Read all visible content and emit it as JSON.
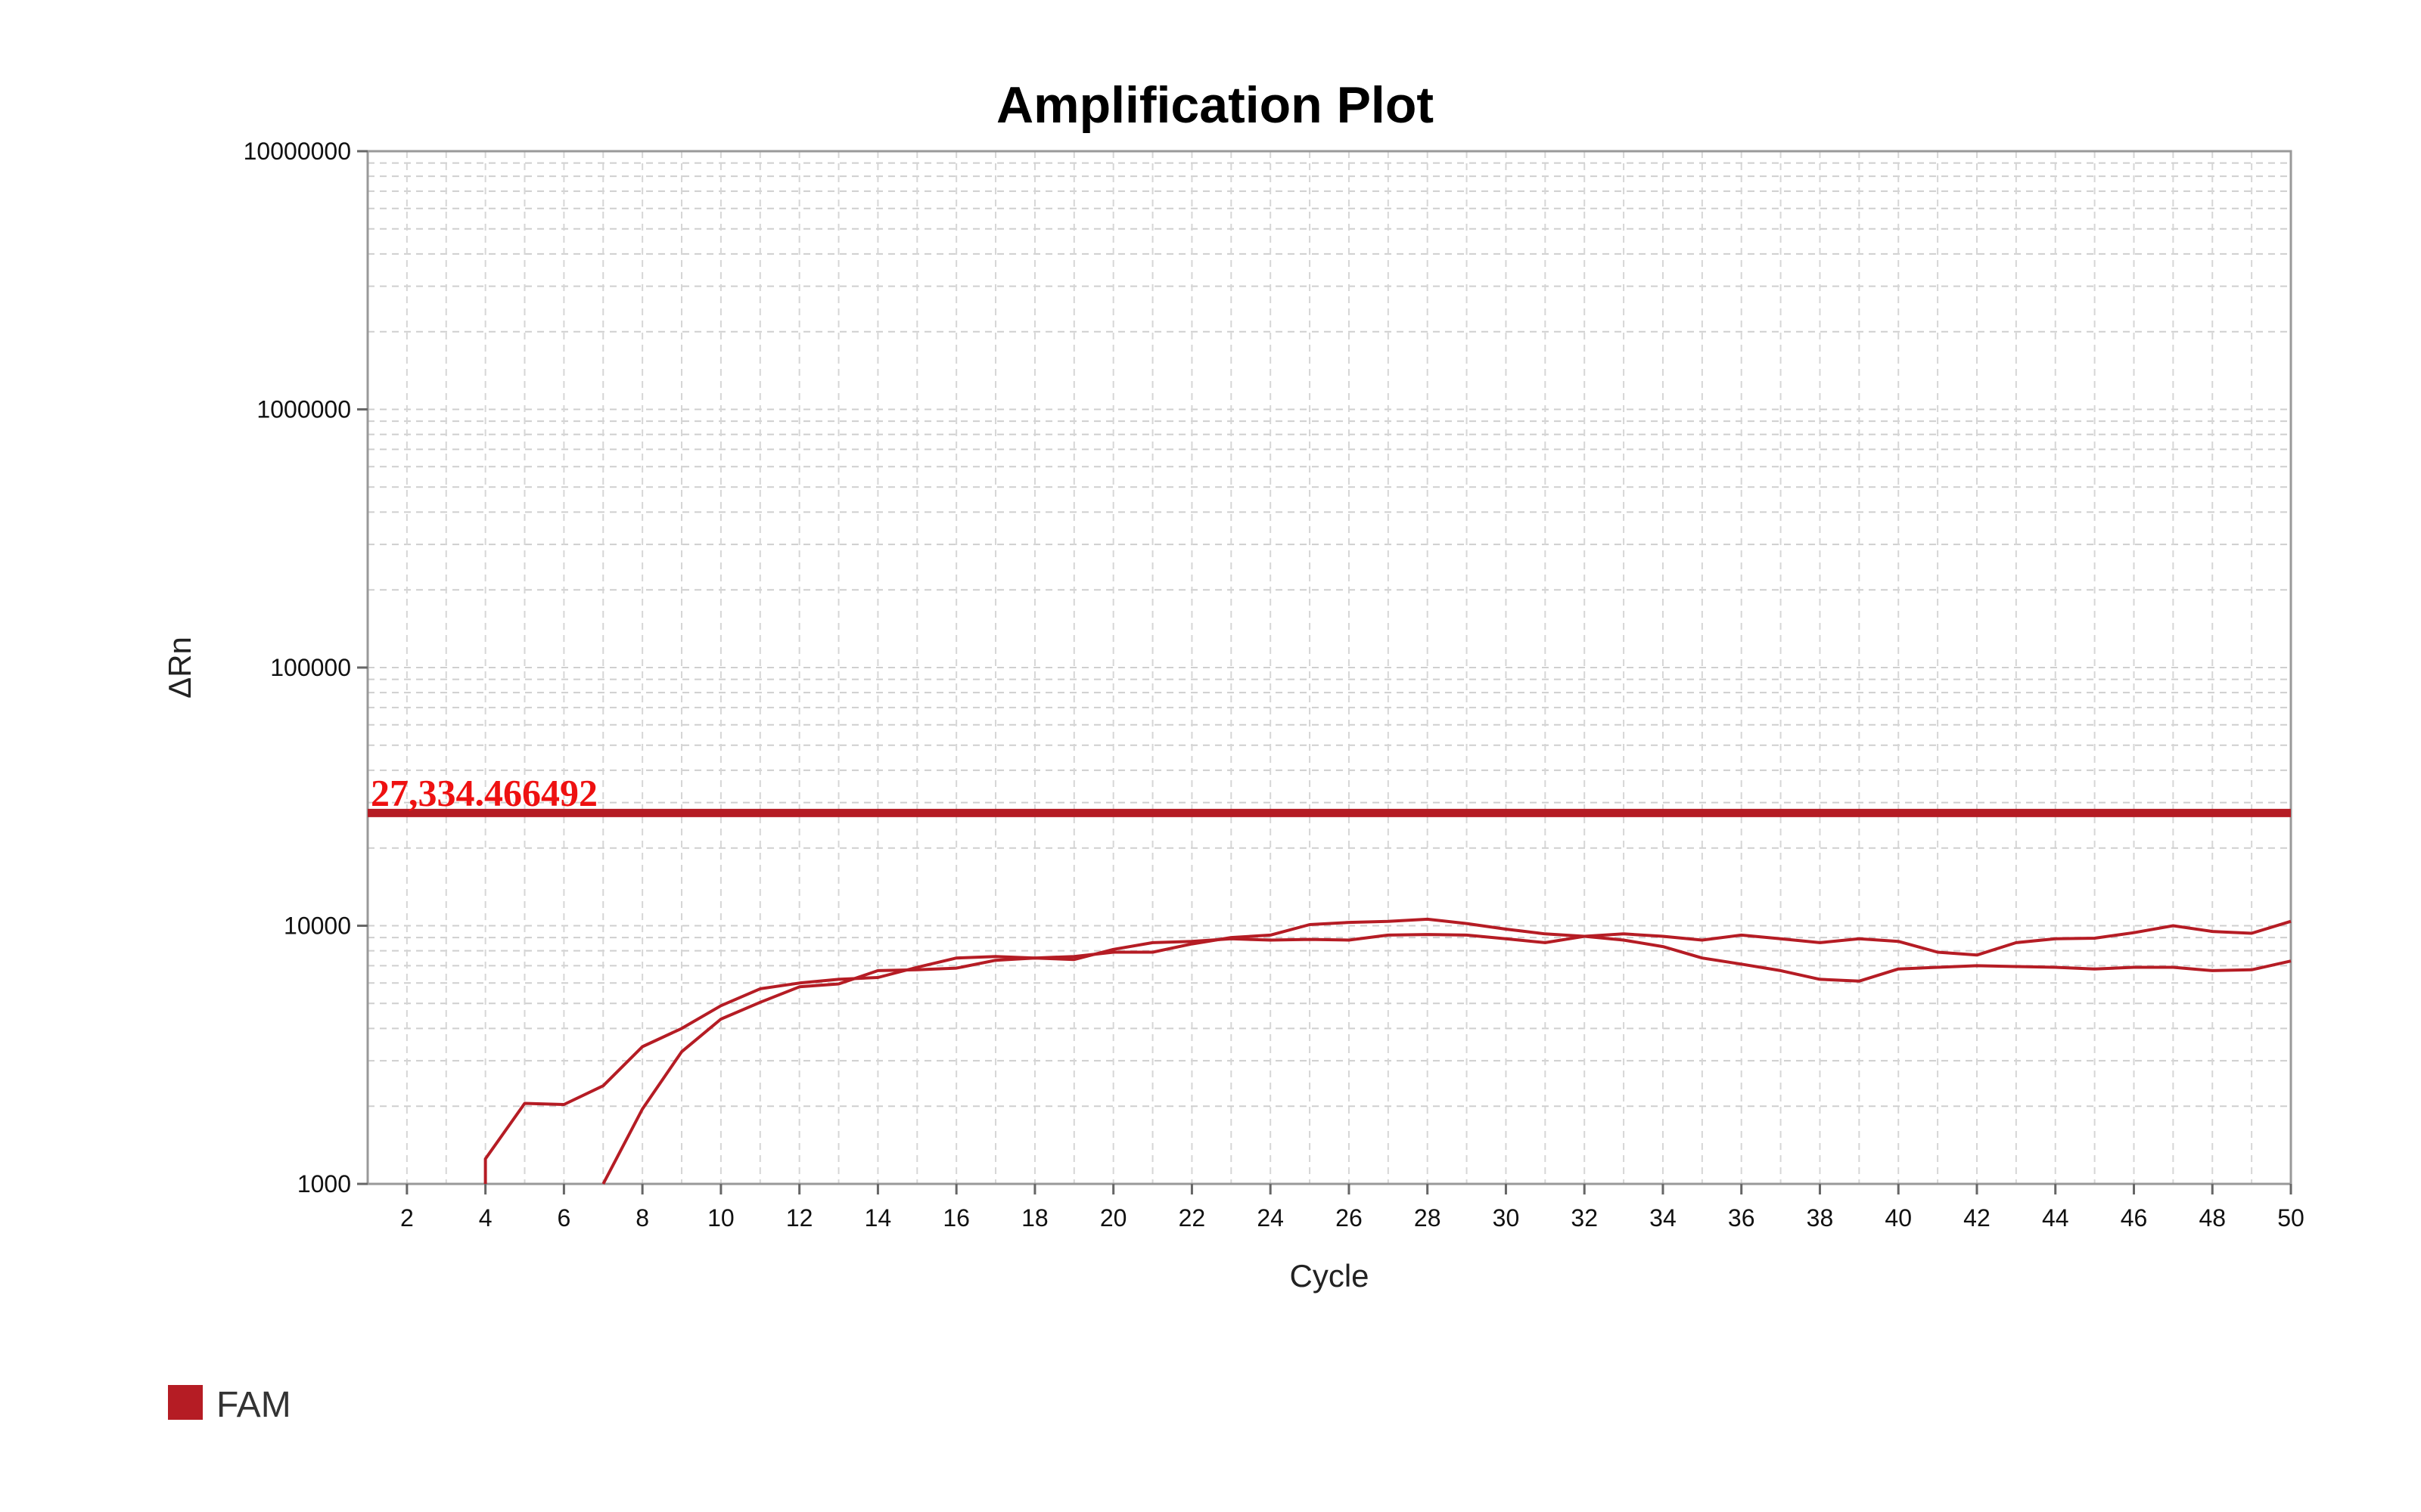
{
  "chart_data": {
    "type": "line",
    "title": "Amplification Plot",
    "xlabel": "Cycle",
    "ylabel": "ΔRn",
    "xlim": [
      1,
      50
    ],
    "ylim": [
      1000,
      10000000
    ],
    "yscale": "log",
    "grid": true,
    "xticks": [
      2,
      4,
      6,
      8,
      10,
      12,
      14,
      16,
      18,
      20,
      22,
      24,
      26,
      28,
      30,
      32,
      34,
      36,
      38,
      40,
      42,
      44,
      46,
      48,
      50
    ],
    "yticks": [
      1000,
      10000,
      100000,
      1000000,
      10000000
    ],
    "ytick_labels": [
      "1000",
      "10000",
      "100000",
      "1000000",
      "10000000"
    ],
    "threshold": {
      "value": 27334.466492,
      "label": "27,334.466492",
      "color": "#b51c24"
    },
    "legend": {
      "position": "bottom-left",
      "entries": [
        {
          "name": "FAM",
          "color": "#b51c24"
        }
      ]
    },
    "series": [
      {
        "color": "#b51c24",
        "x": [
          4,
          5,
          6,
          7,
          8,
          9,
          10,
          11,
          12,
          13,
          14,
          15,
          16,
          17,
          18,
          19,
          20,
          21,
          22,
          23,
          24,
          25,
          26,
          27,
          28,
          29,
          30,
          31,
          32,
          33,
          34,
          35,
          36,
          37,
          38,
          39,
          40,
          41,
          42,
          43,
          44,
          45,
          46,
          47,
          48,
          49,
          50
        ],
        "y": [
          1250,
          2050,
          2030,
          2400,
          3400,
          4000,
          4900,
          5700,
          6000,
          6200,
          6300,
          6900,
          7500,
          7600,
          7500,
          7600,
          7900,
          7900,
          8500,
          9000,
          9200,
          10100,
          10300,
          10400,
          10600,
          10200,
          9700,
          9300,
          9100,
          8800,
          8300,
          7500,
          7100,
          6700,
          6200,
          6100,
          6800,
          6900,
          7000,
          6950,
          6900,
          6800,
          6900,
          6900,
          6700,
          6750,
          7300
        ]
      },
      {
        "color": "#b51c24",
        "x": [
          7,
          8,
          9,
          10,
          11,
          12,
          13,
          14,
          15,
          16,
          17,
          18,
          19,
          20,
          21,
          22,
          23,
          24,
          25,
          26,
          27,
          28,
          29,
          30,
          31,
          32,
          33,
          34,
          35,
          36,
          37,
          38,
          39,
          40,
          41,
          42,
          43,
          44,
          45,
          46,
          47,
          48,
          49,
          50
        ],
        "y": [
          1000,
          1950,
          3250,
          4350,
          5050,
          5800,
          5950,
          6700,
          6750,
          6850,
          7350,
          7500,
          7400,
          8100,
          8600,
          8700,
          8900,
          8800,
          8850,
          8800,
          9200,
          9250,
          9200,
          8900,
          8600,
          9100,
          9300,
          9100,
          8800,
          9200,
          8900,
          8600,
          8900,
          8700,
          7900,
          7700,
          8600,
          8900,
          8950,
          9400,
          10000,
          9500,
          9350,
          10400
        ]
      }
    ]
  }
}
